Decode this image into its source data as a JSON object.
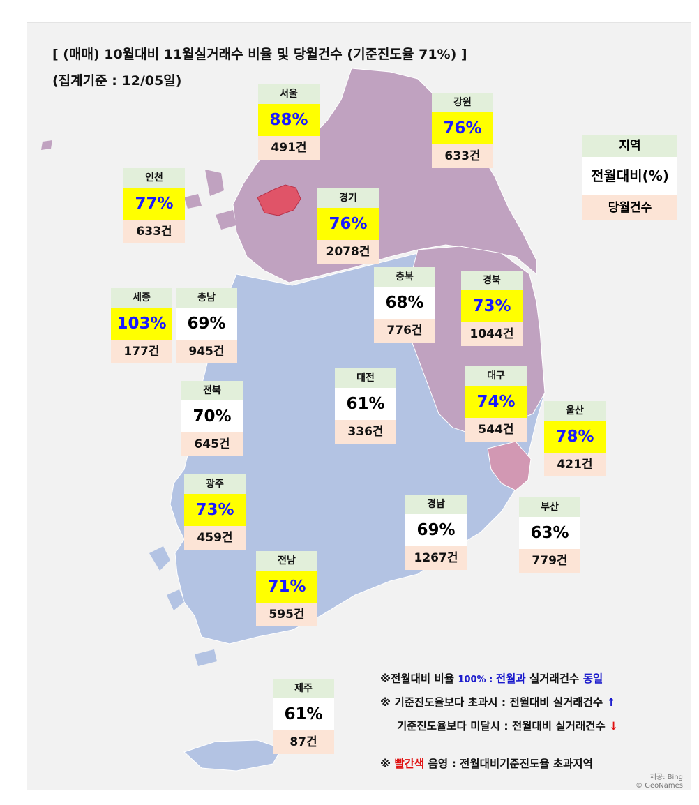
{
  "title_line1": "[ (매매) 10월대비 11월실거래수 비율 및 당월건수 (기준진도율 71%) ]",
  "title_line2": "(집계기준 : 12/05일)",
  "legend": {
    "name": "지역",
    "pct": "전월대비(%)",
    "count": "당월건수"
  },
  "regions": [
    {
      "name": "서울",
      "pct": "88%",
      "count": "491건",
      "above": true
    },
    {
      "name": "강원",
      "pct": "76%",
      "count": "633건",
      "above": true
    },
    {
      "name": "인천",
      "pct": "77%",
      "count": "633건",
      "above": true
    },
    {
      "name": "경기",
      "pct": "76%",
      "count": "2078건",
      "above": true
    },
    {
      "name": "충북",
      "pct": "68%",
      "count": "776건",
      "above": false
    },
    {
      "name": "경북",
      "pct": "73%",
      "count": "1044건",
      "above": true
    },
    {
      "name": "세종",
      "pct": "103%",
      "count": "177건",
      "above": true
    },
    {
      "name": "충남",
      "pct": "69%",
      "count": "945건",
      "above": false
    },
    {
      "name": "대전",
      "pct": "61%",
      "count": "336건",
      "above": false
    },
    {
      "name": "대구",
      "pct": "74%",
      "count": "544건",
      "above": true
    },
    {
      "name": "전북",
      "pct": "70%",
      "count": "645건",
      "above": false
    },
    {
      "name": "울산",
      "pct": "78%",
      "count": "421건",
      "above": true
    },
    {
      "name": "광주",
      "pct": "73%",
      "count": "459건",
      "above": true
    },
    {
      "name": "경남",
      "pct": "69%",
      "count": "1267건",
      "above": false
    },
    {
      "name": "부산",
      "pct": "63%",
      "count": "779건",
      "above": false
    },
    {
      "name": "전남",
      "pct": "71%",
      "count": "595건",
      "above": true
    },
    {
      "name": "제주",
      "pct": "61%",
      "count": "87건",
      "above": false
    }
  ],
  "notes": {
    "n1_a": "※전월대비 비율 ",
    "n1_b": "100% : ",
    "n1_c": "전월과",
    "n1_d": " 실거래건수 ",
    "n1_e": "동일",
    "n2_a": "※ 기준진도율보다 초과시 : 전월대비 실거래건수 ",
    "n2_arrow": "↑",
    "n3_a": "기준진도율보다 미달시 : 전월대비 실거래건수 ",
    "n3_arrow": "↓",
    "n4_a": "※ ",
    "n4_b": "빨간색",
    "n4_c": " 음영 : 전월대비기준진도율 초과지역"
  },
  "credit_line1": "제공: Bing",
  "credit_line2": "© GeoNames",
  "colors": {
    "north_region": "#c0a2c0",
    "south_region": "#b3c3e3",
    "seoul_fill": "#e05468",
    "busan_fill": "#d298b3",
    "highlight_yellow": "#ffff00",
    "pct_blue": "#1a1aff",
    "name_bg": "#e2efda",
    "count_bg": "#fce4d6"
  }
}
